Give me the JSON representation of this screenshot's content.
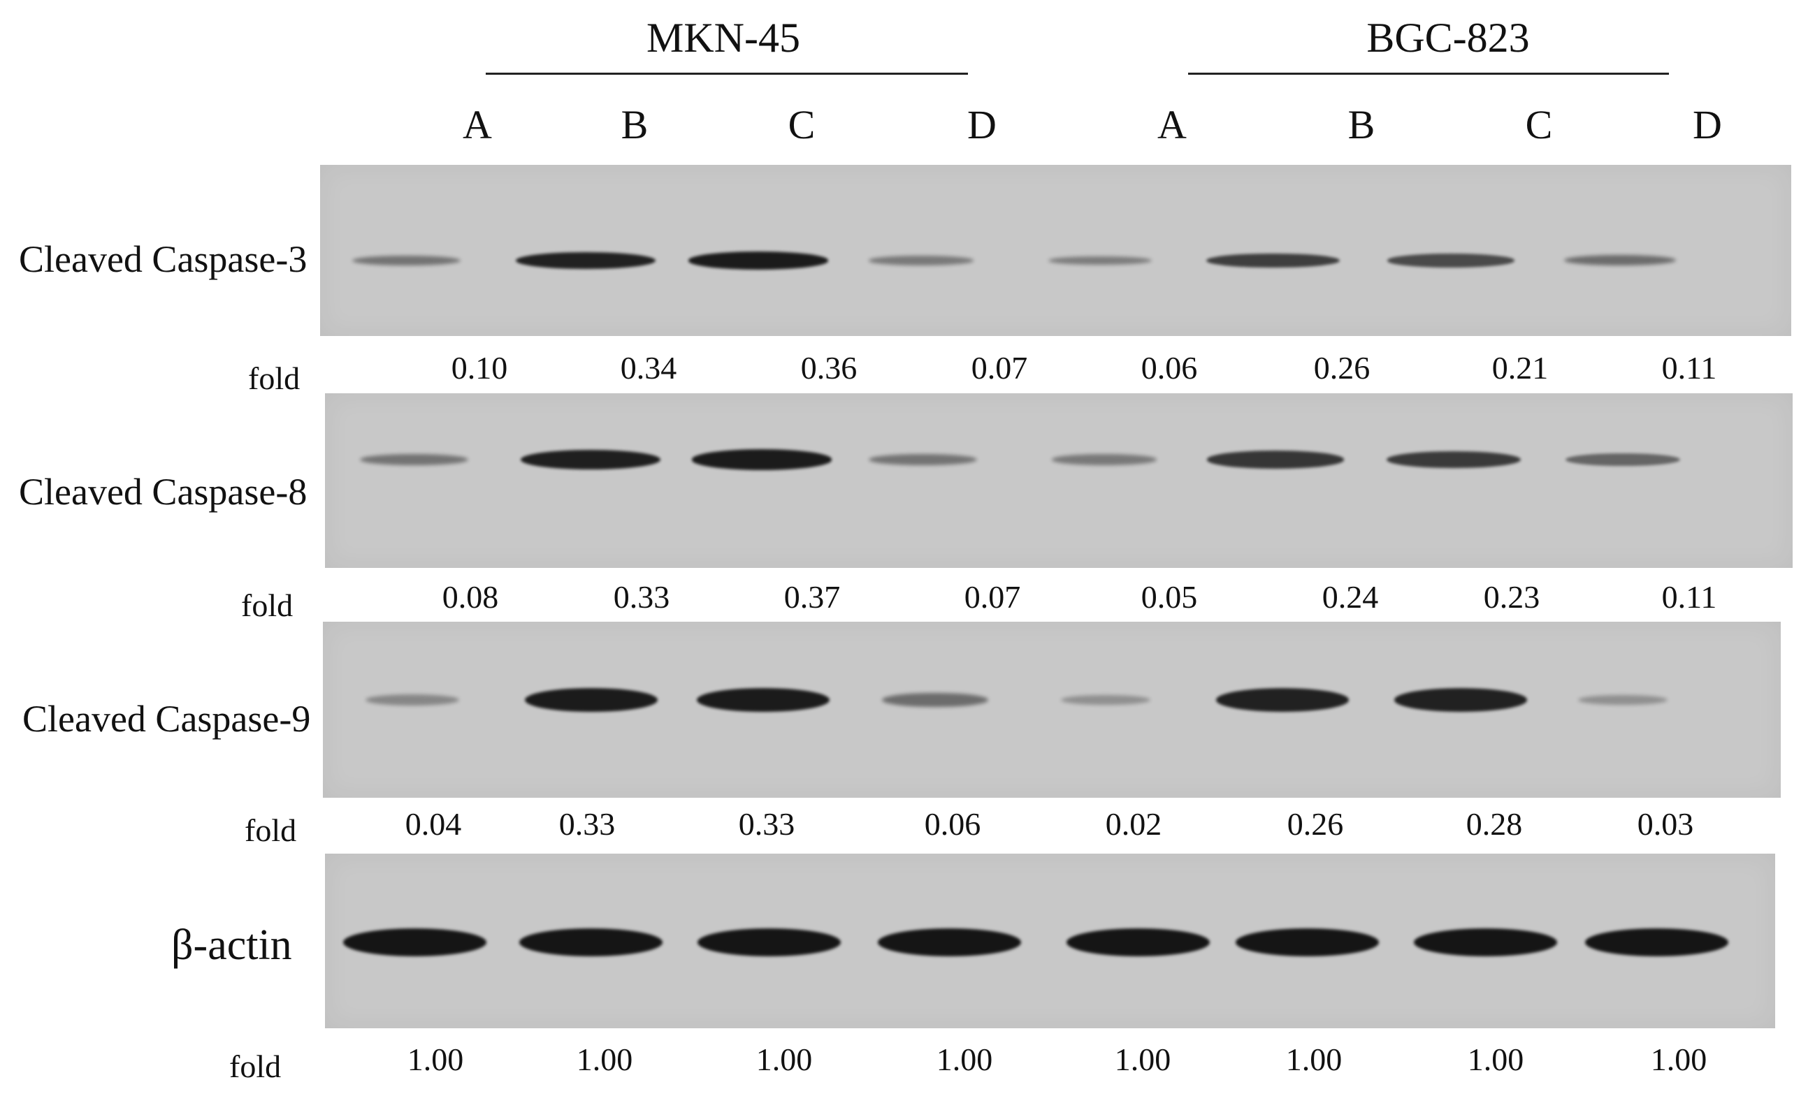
{
  "groups": [
    {
      "name": "MKN-45"
    },
    {
      "name": "BGC-823"
    }
  ],
  "lanes": [
    "A",
    "B",
    "C",
    "D",
    "A",
    "B",
    "C",
    "D"
  ],
  "fold_label": "fold",
  "blots": [
    {
      "label": "Cleaved Caspase-3",
      "fold": [
        "0.10",
        "0.34",
        "0.36",
        "0.07",
        "0.06",
        "0.26",
        "0.21",
        "0.11"
      ],
      "intensity": [
        0.3,
        0.9,
        0.95,
        0.25,
        0.22,
        0.7,
        0.6,
        0.35
      ]
    },
    {
      "label": "Cleaved Caspase-8",
      "fold": [
        "0.08",
        "0.33",
        "0.37",
        "0.07",
        "0.05",
        "0.24",
        "0.23",
        "0.11"
      ],
      "intensity": [
        0.3,
        0.92,
        0.95,
        0.3,
        0.25,
        0.75,
        0.72,
        0.4
      ]
    },
    {
      "label": "Cleaved Caspase-9",
      "fold": [
        "0.04",
        "0.33",
        "0.33",
        "0.06",
        "0.02",
        "0.26",
        "0.28",
        "0.03"
      ],
      "intensity": [
        0.15,
        0.95,
        0.95,
        0.35,
        0.08,
        0.9,
        0.9,
        0.08
      ]
    },
    {
      "label": "β-actin",
      "fold": [
        "1.00",
        "1.00",
        "1.00",
        "1.00",
        "1.00",
        "1.00",
        "1.00",
        "1.00"
      ],
      "intensity": [
        1,
        1,
        1,
        1,
        1,
        1,
        1,
        1
      ]
    }
  ]
}
